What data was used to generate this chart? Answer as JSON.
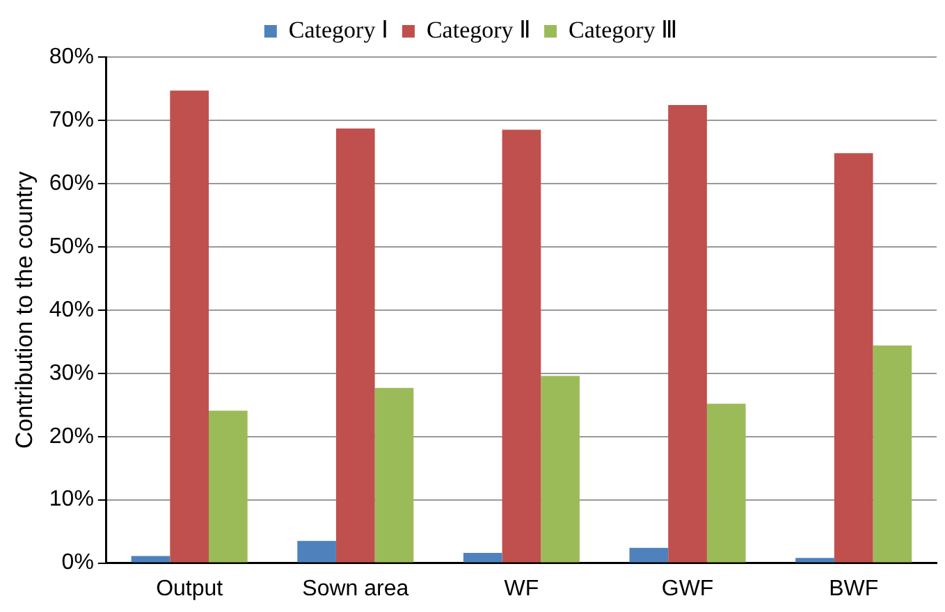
{
  "chart_data": {
    "type": "bar",
    "ylabel": "Contribution to the country",
    "categories": [
      "Output",
      "Sown area",
      "WF",
      "GWF",
      "BWF"
    ],
    "series": [
      {
        "name": "Category Ⅰ",
        "color": "#4f81bd",
        "values": [
          1.1,
          3.5,
          1.6,
          2.4,
          0.8
        ]
      },
      {
        "name": "Category Ⅱ",
        "color": "#c0504d",
        "values": [
          74.7,
          68.7,
          68.5,
          72.4,
          64.8
        ]
      },
      {
        "name": "Category Ⅲ",
        "color": "#9bbb59",
        "values": [
          24.1,
          27.7,
          29.6,
          25.2,
          34.4
        ]
      }
    ],
    "ylim": [
      0,
      80
    ],
    "yticks": [
      {
        "value": 0,
        "label": "0%"
      },
      {
        "value": 10,
        "label": "10%"
      },
      {
        "value": 20,
        "label": "20%"
      },
      {
        "value": 30,
        "label": "30%"
      },
      {
        "value": 40,
        "label": "40%"
      },
      {
        "value": 50,
        "label": "50%"
      },
      {
        "value": 60,
        "label": "60%"
      },
      {
        "value": 70,
        "label": "70%"
      },
      {
        "value": 80,
        "label": "80%"
      }
    ],
    "grid": "y",
    "legend": "top"
  }
}
